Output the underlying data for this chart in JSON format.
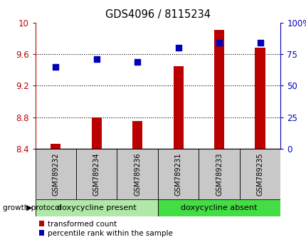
{
  "title": "GDS4096 / 8115234",
  "samples": [
    "GSM789232",
    "GSM789234",
    "GSM789236",
    "GSM789231",
    "GSM789233",
    "GSM789235"
  ],
  "transformed_count": [
    8.46,
    8.8,
    8.75,
    9.45,
    9.91,
    9.68
  ],
  "percentile_rank": [
    65,
    71,
    69,
    80,
    84,
    84
  ],
  "ylim_left": [
    8.4,
    10.0
  ],
  "ylim_right": [
    0,
    100
  ],
  "yticks_left": [
    8.4,
    8.8,
    9.2,
    9.6,
    10.0
  ],
  "ytick_labels_left": [
    "8.4",
    "8.8",
    "9.2",
    "9.6",
    "10"
  ],
  "yticks_right": [
    0,
    25,
    50,
    75,
    100
  ],
  "ytick_labels_right": [
    "0",
    "25",
    "50",
    "75",
    "100%"
  ],
  "bar_color": "#bb0000",
  "dot_color": "#0000bb",
  "group1_label": "doxycycline present",
  "group2_label": "doxycycline absent",
  "group1_color": "#b0e8a8",
  "group2_color": "#44dd44",
  "group1_indices": [
    0,
    1,
    2
  ],
  "group2_indices": [
    3,
    4,
    5
  ],
  "legend_bar_label": "transformed count",
  "legend_dot_label": "percentile rank within the sample",
  "growth_protocol_label": "growth protocol",
  "bar_bottom": 8.4,
  "bar_width": 0.25,
  "dot_size": 28
}
